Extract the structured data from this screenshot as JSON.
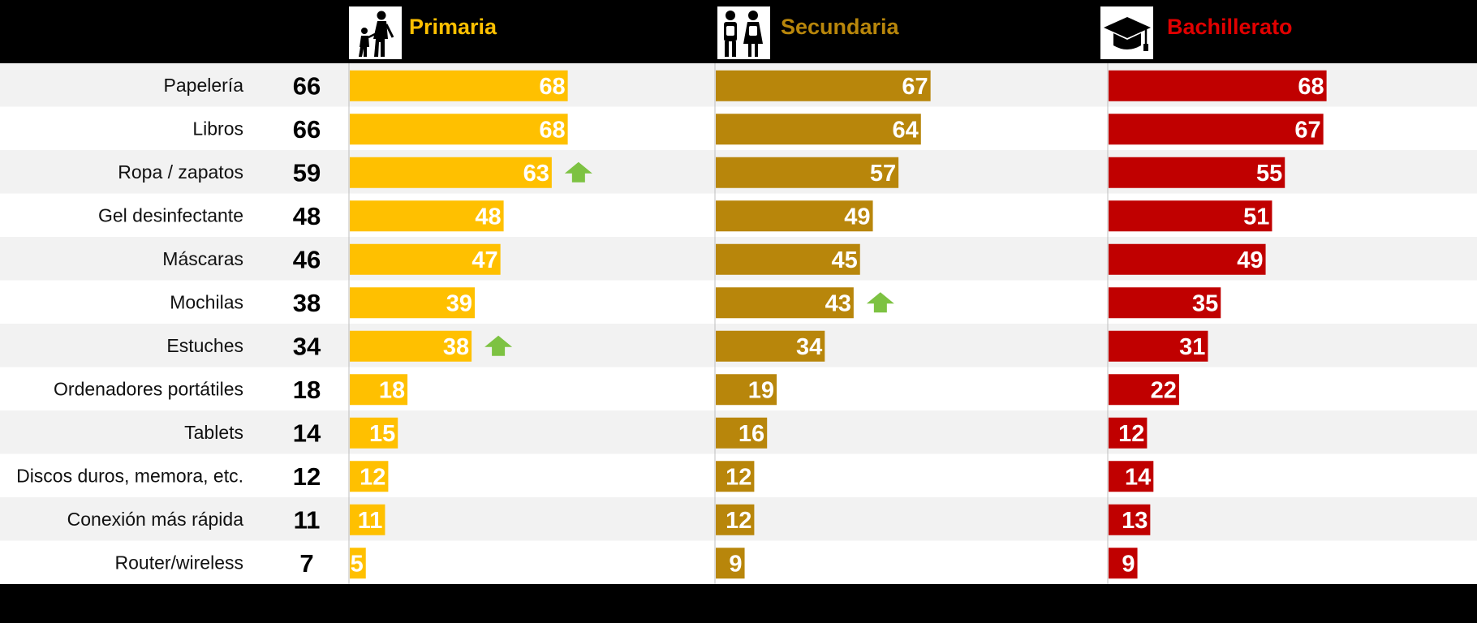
{
  "chart_data": {
    "type": "bar",
    "orientation": "horizontal",
    "categories": [
      "Papelería",
      "Libros",
      "Ropa / zapatos",
      "Gel desinfectante",
      "Máscaras",
      "Mochilas",
      "Estuches",
      "Ordenadores portátiles",
      "Tablets",
      "Discos duros, memora, etc.",
      "Conexión más rápida",
      "Router/wireless"
    ],
    "totals": [
      66,
      66,
      59,
      48,
      46,
      38,
      34,
      18,
      14,
      12,
      11,
      7
    ],
    "series": [
      {
        "name": "Primaria",
        "color": "#FFC000",
        "icon": "walking-children-icon",
        "values": [
          68,
          68,
          63,
          48,
          47,
          39,
          38,
          18,
          15,
          12,
          11,
          5
        ],
        "up_arrows": [
          "Ropa / zapatos",
          "Estuches"
        ]
      },
      {
        "name": "Secundaria",
        "color": "#B8860B",
        "icon": "students-backpacks-icon",
        "values": [
          67,
          64,
          57,
          49,
          45,
          43,
          34,
          19,
          16,
          12,
          12,
          9
        ],
        "up_arrows": [
          "Mochilas"
        ]
      },
      {
        "name": "Bachillerato",
        "color": "#C00000",
        "icon": "graduation-cap-icon",
        "values": [
          68,
          67,
          55,
          51,
          49,
          35,
          31,
          22,
          12,
          14,
          13,
          9
        ],
        "up_arrows": []
      }
    ],
    "arrow_color": "#7DC242",
    "row_colors": [
      "#F2F2F2",
      "#FFFFFF"
    ],
    "header_label_colors": [
      "#FFC000",
      "#B8860B",
      "#E00000"
    ],
    "xlim": [
      0,
      100
    ]
  }
}
